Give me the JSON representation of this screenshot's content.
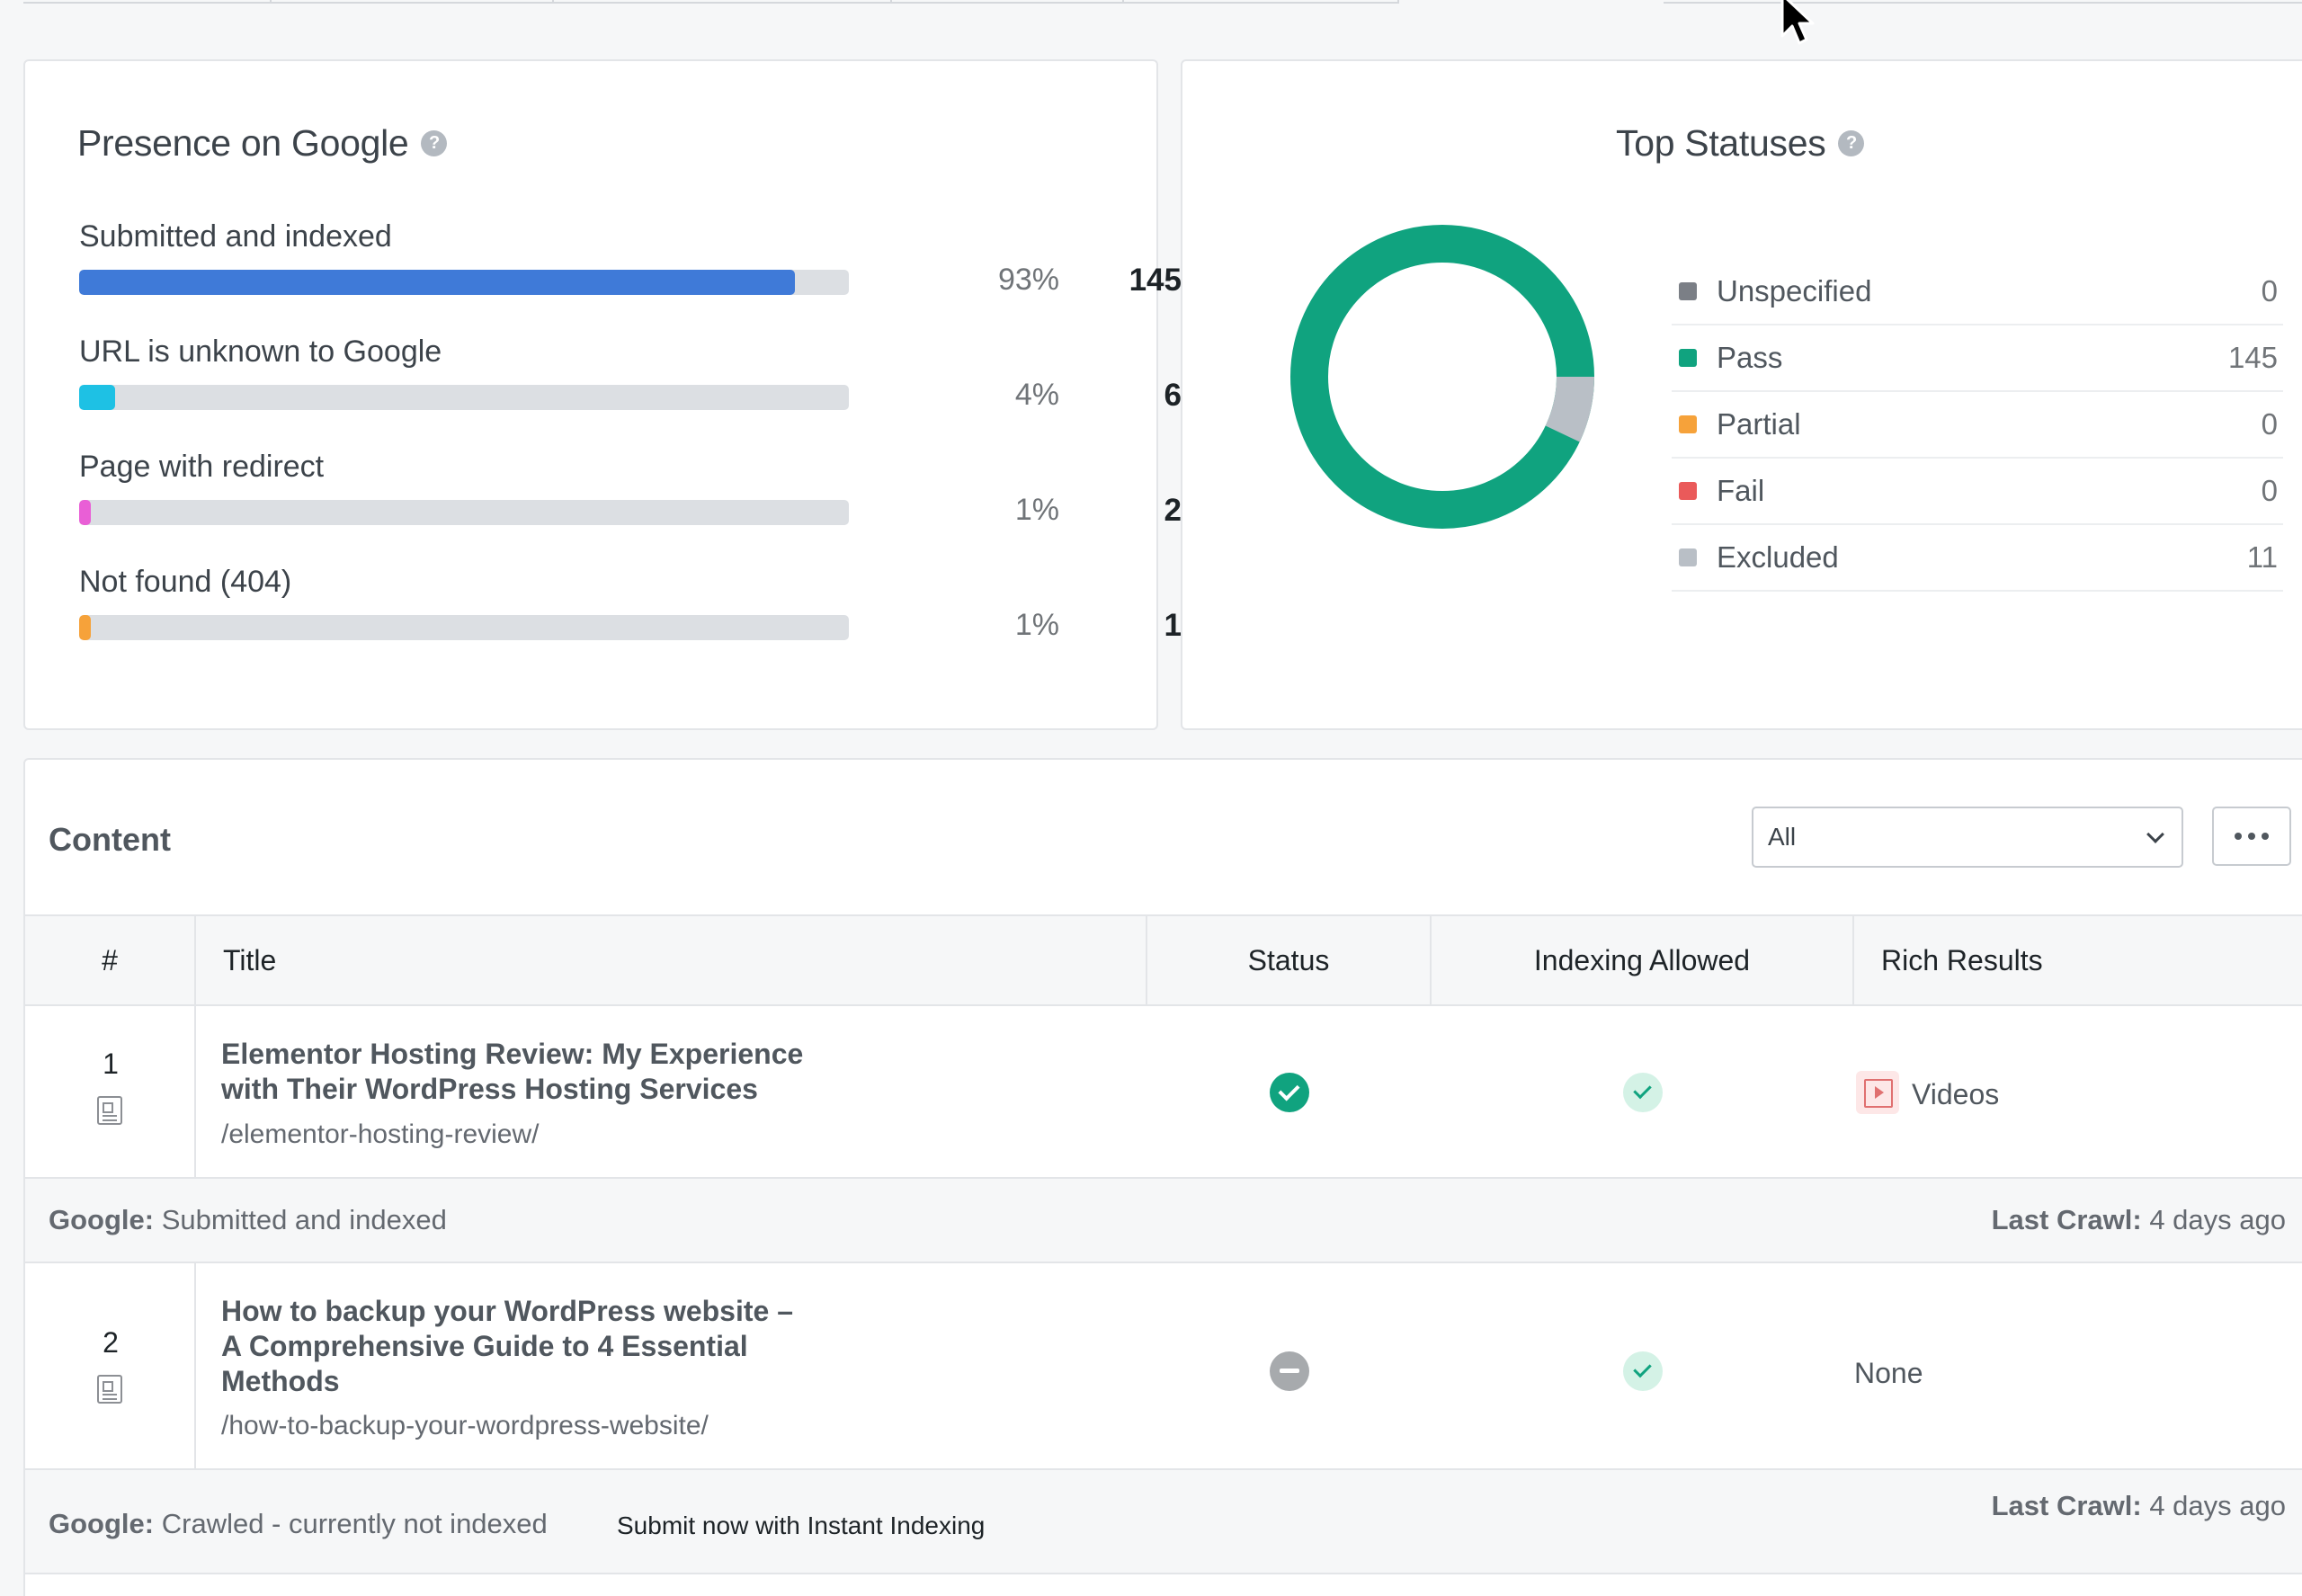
{
  "presence": {
    "title": "Presence on Google",
    "help": "?",
    "metrics": [
      {
        "label": "Submitted and indexed",
        "percent": "93%",
        "count": "145",
        "fill": 0.93,
        "color": "#3f7ad8"
      },
      {
        "label": "URL is unknown to Google",
        "percent": "4%",
        "count": "6",
        "fill": 0.04,
        "color": "#1ec1e4"
      },
      {
        "label": "Page with redirect",
        "percent": "1%",
        "count": "2",
        "fill": 0.01,
        "color": "#e95fd6"
      },
      {
        "label": "Not found (404)",
        "percent": "1%",
        "count": "1",
        "fill": 0.01,
        "color": "#f6a23a"
      }
    ]
  },
  "statuses": {
    "title": "Top Statuses",
    "help": "?",
    "items": [
      {
        "label": "Unspecified",
        "value": "0",
        "color": "#7b7f86"
      },
      {
        "label": "Pass",
        "value": "145",
        "color": "#10a37f"
      },
      {
        "label": "Partial",
        "value": "0",
        "color": "#f6a23a"
      },
      {
        "label": "Fail",
        "value": "0",
        "color": "#ea5a5a"
      },
      {
        "label": "Excluded",
        "value": "11",
        "color": "#b9bfc6"
      }
    ]
  },
  "content": {
    "title": "Content",
    "filter": {
      "selected": "All"
    },
    "columns": {
      "num": "#",
      "title": "Title",
      "status": "Status",
      "indexing": "Indexing Allowed",
      "rich": "Rich Results"
    },
    "rows": [
      {
        "num": "1",
        "title_line1": "Elementor Hosting Review: My Experience",
        "title_line2": "with Their WordPress Hosting Services",
        "title_line3": "",
        "url": "/elementor-hosting-review/",
        "status": "pass",
        "rich_results": "Videos",
        "google_label": "Google:",
        "google_status": "Submitted and indexed",
        "action": "",
        "crawl_label": "Last Crawl:",
        "crawl_value": "4 days ago"
      },
      {
        "num": "2",
        "title_line1": "How to backup your WordPress website –",
        "title_line2": "A Comprehensive Guide to 4 Essential",
        "title_line3": "Methods",
        "url": "/how-to-backup-your-wordpress-website/",
        "status": "neutral",
        "rich_results": "None",
        "google_label": "Google:",
        "google_status": "Crawled - currently not indexed",
        "action": "Submit now with Instant Indexing",
        "crawl_label": "Last Crawl:",
        "crawl_value": "4 days ago"
      }
    ]
  }
}
